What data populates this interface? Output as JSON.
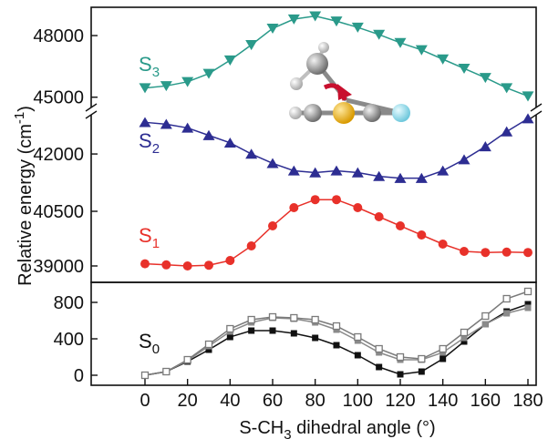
{
  "chart_data": [
    {
      "type": "line",
      "panel": "S3",
      "state_label": "S",
      "state_sub": "3",
      "color": "#2a9a8a",
      "marker": "triangle-down",
      "ylim": [
        44500,
        49200
      ],
      "yticks": [
        45000,
        48000
      ],
      "ytick_labels": [
        "45000",
        "48000"
      ],
      "series": [
        {
          "x": [
            0,
            10,
            20,
            30,
            40,
            50,
            60,
            70,
            80,
            90,
            100,
            110,
            120,
            130,
            140,
            150,
            160,
            170,
            180
          ],
          "values": [
            45450,
            45550,
            45750,
            46150,
            46800,
            47550,
            48350,
            48800,
            48950,
            48700,
            48400,
            48050,
            47650,
            47300,
            46850,
            46400,
            45950,
            45450,
            45050
          ]
        }
      ]
    },
    {
      "type": "line",
      "panel": "S2",
      "state_label": "S",
      "state_sub": "2",
      "color": "#2d2d92",
      "marker": "triangle-up",
      "ylim": [
        40950,
        43200
      ],
      "yticks": [
        42000
      ],
      "ytick_labels": [
        "42000"
      ],
      "series": [
        {
          "x": [
            0,
            10,
            20,
            30,
            40,
            50,
            60,
            70,
            80,
            90,
            100,
            110,
            120,
            130,
            140,
            150,
            160,
            170,
            180
          ],
          "values": [
            42850,
            42800,
            42700,
            42500,
            42300,
            42000,
            41750,
            41550,
            41500,
            41550,
            41500,
            41400,
            41350,
            41350,
            41550,
            41850,
            42200,
            42600,
            42950
          ]
        }
      ]
    },
    {
      "type": "line",
      "panel": "S1",
      "state_label": "S",
      "state_sub": "1",
      "color": "#e8312a",
      "marker": "circle",
      "ylim": [
        38650,
        41400
      ],
      "yticks": [
        39000,
        40500
      ],
      "ytick_labels": [
        "39000",
        "40500"
      ],
      "series": [
        {
          "x": [
            0,
            10,
            20,
            30,
            40,
            50,
            60,
            70,
            80,
            90,
            100,
            110,
            120,
            130,
            140,
            150,
            160,
            170,
            180
          ],
          "values": [
            39060,
            39030,
            39000,
            39020,
            39150,
            39550,
            40100,
            40600,
            40820,
            40820,
            40600,
            40350,
            40100,
            39850,
            39600,
            39400,
            39370,
            39380,
            39370
          ]
        }
      ]
    },
    {
      "type": "line",
      "panel": "S0",
      "state_label": "S",
      "state_sub": "0",
      "color": "#111111",
      "ylim": [
        -60,
        1000
      ],
      "yticks": [
        0,
        400,
        800
      ],
      "ytick_labels": [
        "0",
        "400",
        "800"
      ],
      "xticks": [
        0,
        20,
        40,
        60,
        80,
        100,
        120,
        140,
        160,
        180
      ],
      "xtick_labels": [
        "0",
        "20",
        "40",
        "60",
        "80",
        "100",
        "120",
        "140",
        "160",
        "180"
      ],
      "xlabel_pre": "S-CH",
      "xlabel_sub": "3",
      "xlabel_post": " dihedral angle (°)",
      "series": [
        {
          "marker": "square-filled",
          "color": "#111111",
          "x": [
            0,
            10,
            20,
            30,
            40,
            50,
            60,
            70,
            80,
            90,
            100,
            110,
            120,
            130,
            140,
            150,
            160,
            170,
            180
          ],
          "values": [
            0,
            40,
            150,
            280,
            420,
            490,
            490,
            460,
            410,
            330,
            220,
            90,
            10,
            40,
            180,
            370,
            560,
            700,
            780
          ]
        },
        {
          "marker": "square-filled",
          "color": "#8a8a8a",
          "x": [
            0,
            10,
            20,
            30,
            40,
            50,
            60,
            70,
            80,
            90,
            100,
            110,
            120,
            130,
            140,
            150,
            160,
            170,
            180
          ],
          "values": [
            0,
            40,
            160,
            320,
            480,
            580,
            630,
            620,
            580,
            500,
            380,
            250,
            170,
            170,
            250,
            410,
            560,
            680,
            740
          ]
        },
        {
          "marker": "square-open",
          "color": "#7a7a7a",
          "x": [
            0,
            10,
            20,
            30,
            40,
            50,
            60,
            70,
            80,
            90,
            100,
            110,
            120,
            130,
            140,
            150,
            160,
            170,
            180
          ],
          "values": [
            0,
            40,
            170,
            340,
            510,
            610,
            640,
            630,
            610,
            540,
            420,
            290,
            200,
            180,
            290,
            470,
            650,
            840,
            920
          ]
        }
      ]
    }
  ],
  "ylabel_pre": "Relative energy (cm",
  "ylabel_sup": "-1",
  "ylabel_post": ")"
}
